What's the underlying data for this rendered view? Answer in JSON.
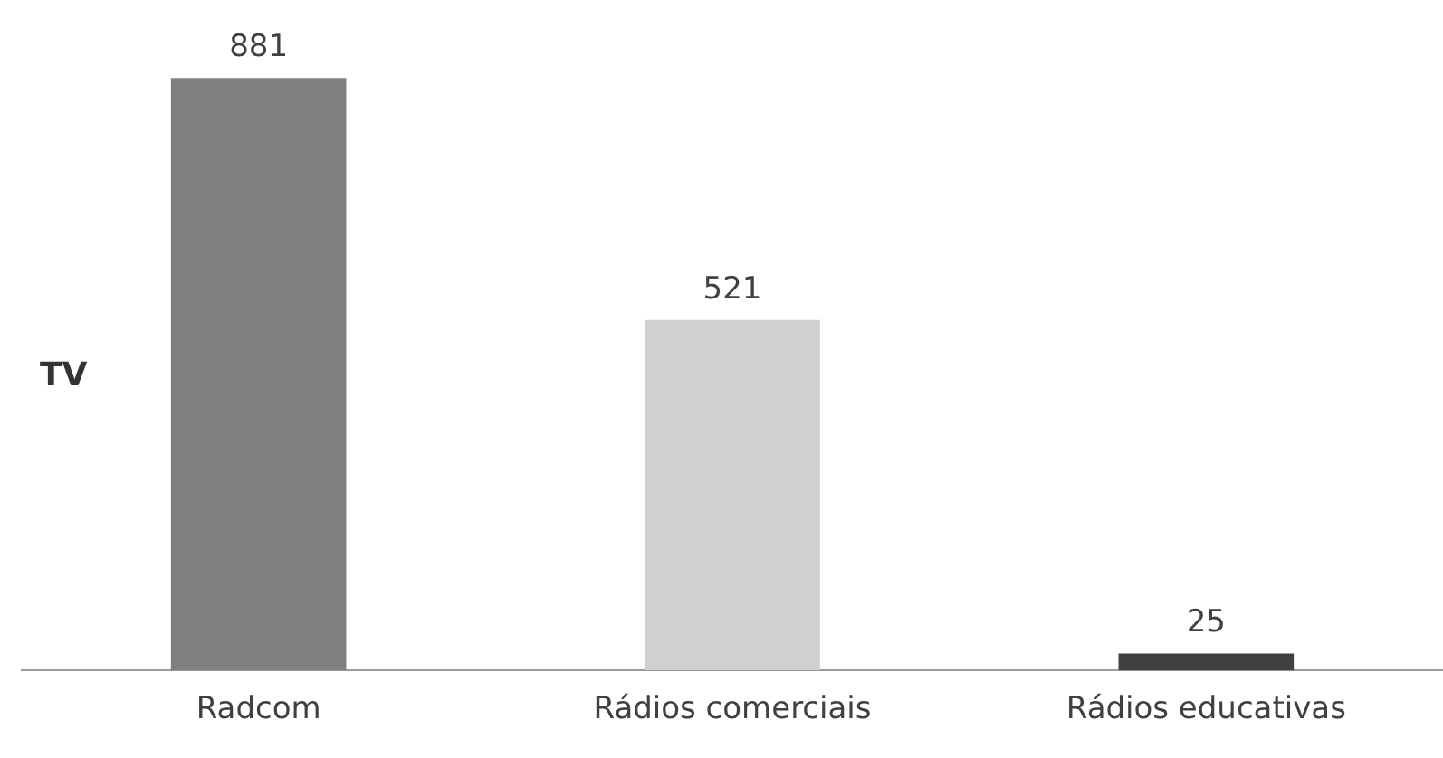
{
  "chart_data": {
    "type": "bar",
    "ylabel": "TV",
    "categories": [
      "Radcom",
      "Rádios comerciais",
      "Rádios educativas"
    ],
    "values": [
      881,
      521,
      25
    ],
    "colors": [
      "#808080",
      "#d0d0d2",
      "#404040"
    ],
    "data_labels": true
  }
}
